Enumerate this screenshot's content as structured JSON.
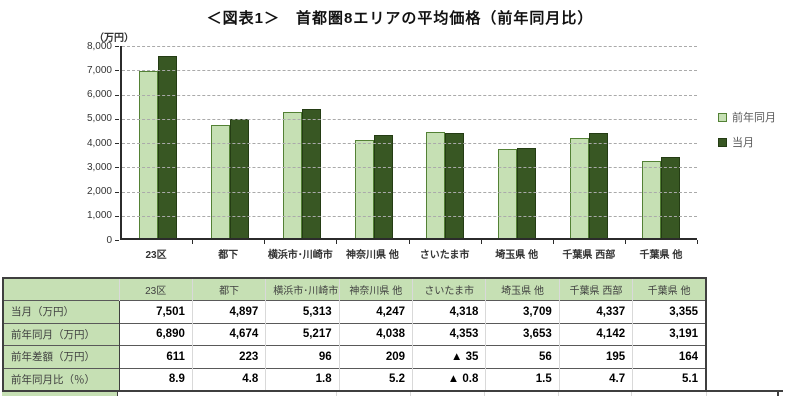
{
  "title": "＜図表1＞　首都圏8エリアの平均価格（前年同月比）",
  "chart": {
    "unit_label": "（万円）",
    "y_ticks": [
      {
        "value": 8000,
        "label": "8,000"
      },
      {
        "value": 7000,
        "label": "7,000"
      },
      {
        "value": 6000,
        "label": "6,000"
      },
      {
        "value": 5000,
        "label": "5,000"
      },
      {
        "value": 4000,
        "label": "4,000"
      },
      {
        "value": 3000,
        "label": "3,000"
      },
      {
        "value": 2000,
        "label": "2,000"
      },
      {
        "value": 1000,
        "label": "1,000"
      },
      {
        "value": 0,
        "label": "0"
      }
    ],
    "legend": [
      {
        "label": "前年同月",
        "color": "#c6e0b4"
      },
      {
        "label": "当月",
        "color": "#385723"
      }
    ]
  },
  "chart_data": {
    "type": "bar",
    "title": "首都圏8エリアの平均価格（前年同月比）",
    "categories": [
      "23区",
      "都下",
      "横浜市･川崎市",
      "神奈川県 他",
      "さいたま市",
      "埼玉県 他",
      "千葉県 西部",
      "千葉県 他"
    ],
    "series": [
      {
        "name": "前年同月",
        "color": "#c6e0b4",
        "values": [
          6890,
          4674,
          5217,
          4038,
          4353,
          3653,
          4142,
          3191
        ]
      },
      {
        "name": "当月",
        "color": "#385723",
        "values": [
          7501,
          4897,
          5313,
          4247,
          4318,
          3709,
          4337,
          3355
        ]
      }
    ],
    "xlabel": "",
    "ylabel": "（万円）",
    "ylim": [
      0,
      8000
    ],
    "grid": true,
    "gridstyle": "dashed",
    "legend_position": "right"
  },
  "table": {
    "col_headers": [
      "23区",
      "都下",
      "横浜市･川崎市",
      "神奈川県 他",
      "さいたま市",
      "埼玉県 他",
      "千葉県 西部",
      "千葉県 他"
    ],
    "rows": [
      {
        "label": "当月（万円）",
        "values": [
          "7,501",
          "4,897",
          "5,313",
          "4,247",
          "4,318",
          "3,709",
          "4,337",
          "3,355"
        ]
      },
      {
        "label": "前年同月（万円）",
        "values": [
          "6,890",
          "4,674",
          "5,217",
          "4,038",
          "4,353",
          "3,653",
          "4,142",
          "3,191"
        ]
      },
      {
        "label": "前年差額（万円）",
        "values": [
          "611",
          "223",
          "96",
          "209",
          "▲ 35",
          "56",
          "195",
          "164"
        ]
      },
      {
        "label": "前年同月比（％）",
        "values": [
          "8.9",
          "4.8",
          "1.8",
          "5.2",
          "▲ 0.8",
          "1.5",
          "4.7",
          "5.1"
        ]
      }
    ]
  }
}
